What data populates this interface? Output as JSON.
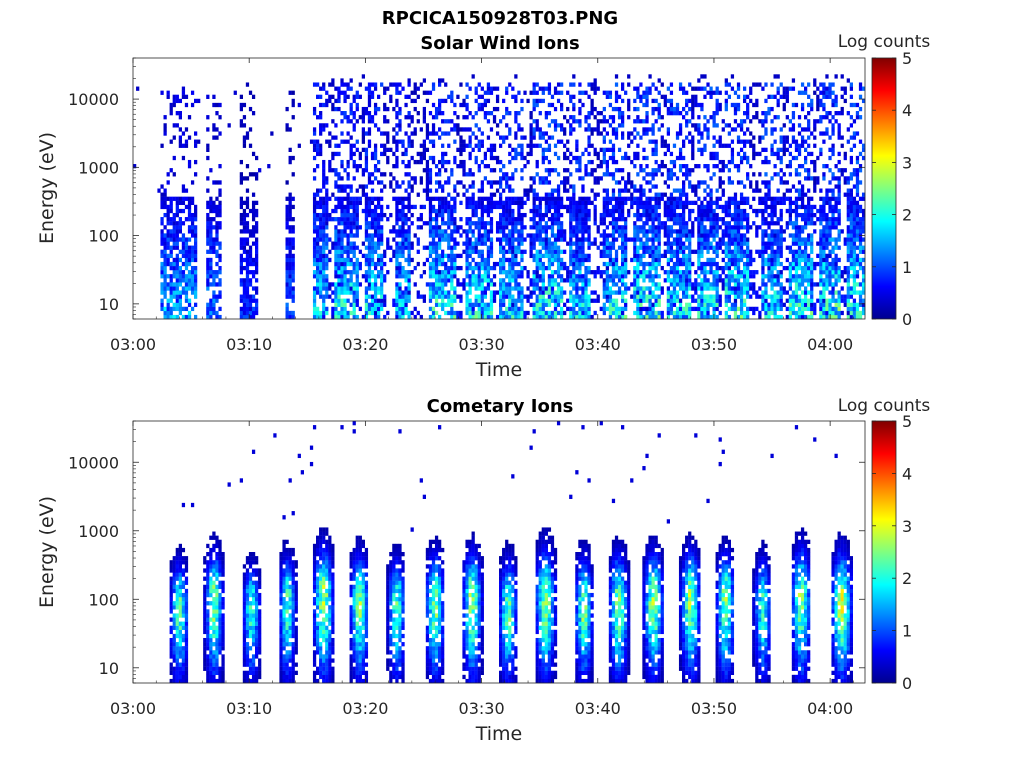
{
  "figure": {
    "filename": "RPCICA150928T03.PNG"
  },
  "colors": {
    "colormap": [
      "#00008f",
      "#0000ff",
      "#0080ff",
      "#00ffff",
      "#80ff80",
      "#ffff00",
      "#ff8000",
      "#ff0000",
      "#800000"
    ],
    "axis": "#262626",
    "background": "#ffffff"
  },
  "chart_data": [
    {
      "type": "heatmap",
      "title": "Solar Wind Ions",
      "xlabel": "Time",
      "ylabel": "Energy (eV)",
      "x_ticks": [
        "03:00",
        "03:10",
        "03:20",
        "03:30",
        "03:40",
        "03:50",
        "04:00"
      ],
      "xlim_minutes": [
        0,
        63
      ],
      "y_scale": "log",
      "y_ticks": [
        "10",
        "100",
        "1000",
        "10000"
      ],
      "ylim": [
        6,
        40000
      ],
      "colorbar": {
        "label": "Log counts",
        "range": [
          0,
          5
        ],
        "ticks": [
          "0",
          "1",
          "2",
          "3",
          "4",
          "5"
        ]
      },
      "grid": false,
      "activity": [
        {
          "start": 2.3,
          "end": 5.5,
          "low_peak": 1.4,
          "sparse_peak": 0.6
        },
        {
          "start": 6.4,
          "end": 7.6,
          "low_peak": 1.2,
          "sparse_peak": 0.5
        },
        {
          "start": 9.2,
          "end": 10.8,
          "low_peak": 0.8,
          "sparse_peak": 0.3
        },
        {
          "start": 13.2,
          "end": 14.0,
          "low_peak": 1.0,
          "sparse_peak": 0.3
        },
        {
          "start": 15.5,
          "end": 16.8,
          "low_peak": 1.6,
          "sparse_peak": 0.9
        },
        {
          "start": 17.2,
          "end": 19.5,
          "low_peak": 1.8,
          "sparse_peak": 1.0
        },
        {
          "start": 20.0,
          "end": 21.5,
          "low_peak": 1.7,
          "sparse_peak": 1.0
        },
        {
          "start": 22.5,
          "end": 24.0,
          "low_peak": 1.6,
          "sparse_peak": 1.0
        },
        {
          "start": 25.5,
          "end": 27.8,
          "low_peak": 1.9,
          "sparse_peak": 1.1
        },
        {
          "start": 28.5,
          "end": 31.0,
          "low_peak": 1.8,
          "sparse_peak": 1.1
        },
        {
          "start": 31.5,
          "end": 33.5,
          "low_peak": 1.7,
          "sparse_peak": 1.1
        },
        {
          "start": 34.5,
          "end": 37.0,
          "low_peak": 1.9,
          "sparse_peak": 1.2
        },
        {
          "start": 37.5,
          "end": 39.5,
          "low_peak": 1.7,
          "sparse_peak": 1.1
        },
        {
          "start": 40.5,
          "end": 42.5,
          "low_peak": 1.8,
          "sparse_peak": 1.2
        },
        {
          "start": 43.0,
          "end": 45.5,
          "low_peak": 1.9,
          "sparse_peak": 1.2
        },
        {
          "start": 46.0,
          "end": 48.0,
          "low_peak": 1.8,
          "sparse_peak": 1.2
        },
        {
          "start": 48.5,
          "end": 50.5,
          "low_peak": 1.8,
          "sparse_peak": 1.2
        },
        {
          "start": 51.0,
          "end": 53.0,
          "low_peak": 1.9,
          "sparse_peak": 1.2
        },
        {
          "start": 54.0,
          "end": 56.0,
          "low_peak": 1.7,
          "sparse_peak": 1.2
        },
        {
          "start": 56.5,
          "end": 58.5,
          "low_peak": 1.9,
          "sparse_peak": 1.2
        },
        {
          "start": 59.0,
          "end": 61.0,
          "low_peak": 2.0,
          "sparse_peak": 1.2
        },
        {
          "start": 61.3,
          "end": 63.0,
          "low_peak": 1.9,
          "sparse_peak": 1.2
        }
      ]
    },
    {
      "type": "heatmap",
      "title": "Cometary Ions",
      "xlabel": "Time",
      "ylabel": "Energy (eV)",
      "x_ticks": [
        "03:00",
        "03:10",
        "03:20",
        "03:30",
        "03:40",
        "03:50",
        "04:00"
      ],
      "xlim_minutes": [
        0,
        63
      ],
      "y_scale": "log",
      "y_ticks": [
        "10",
        "100",
        "1000",
        "10000"
      ],
      "ylim": [
        6,
        40000
      ],
      "colorbar": {
        "label": "Log counts",
        "range": [
          0,
          5
        ],
        "ticks": [
          "0",
          "1",
          "2",
          "3",
          "4",
          "5"
        ]
      },
      "grid": false,
      "bursts": [
        {
          "center": 4.0,
          "width": 1.6,
          "peak": 2.4,
          "energy_center": 70,
          "top_energy": 400
        },
        {
          "center": 7.0,
          "width": 1.6,
          "peak": 2.6,
          "energy_center": 100,
          "top_energy": 600
        },
        {
          "center": 10.2,
          "width": 1.5,
          "peak": 2.2,
          "energy_center": 80,
          "top_energy": 350
        },
        {
          "center": 13.3,
          "width": 1.5,
          "peak": 2.3,
          "energy_center": 90,
          "top_energy": 500
        },
        {
          "center": 16.4,
          "width": 1.8,
          "peak": 2.7,
          "energy_center": 110,
          "top_energy": 700
        },
        {
          "center": 19.5,
          "width": 1.6,
          "peak": 2.6,
          "energy_center": 90,
          "top_energy": 550
        },
        {
          "center": 22.7,
          "width": 1.5,
          "peak": 2.4,
          "energy_center": 80,
          "top_energy": 450
        },
        {
          "center": 26.0,
          "width": 1.7,
          "peak": 2.5,
          "energy_center": 90,
          "top_energy": 550
        },
        {
          "center": 29.2,
          "width": 1.7,
          "peak": 2.7,
          "energy_center": 100,
          "top_energy": 600
        },
        {
          "center": 32.3,
          "width": 1.6,
          "peak": 2.4,
          "energy_center": 70,
          "top_energy": 450
        },
        {
          "center": 35.5,
          "width": 1.8,
          "peak": 2.6,
          "energy_center": 90,
          "top_energy": 700
        },
        {
          "center": 38.8,
          "width": 1.6,
          "peak": 2.5,
          "energy_center": 80,
          "top_energy": 500
        },
        {
          "center": 41.8,
          "width": 1.7,
          "peak": 2.6,
          "energy_center": 90,
          "top_energy": 550
        },
        {
          "center": 44.8,
          "width": 1.7,
          "peak": 2.7,
          "energy_center": 100,
          "top_energy": 600
        },
        {
          "center": 48.0,
          "width": 1.7,
          "peak": 2.7,
          "energy_center": 110,
          "top_energy": 600
        },
        {
          "center": 51.0,
          "width": 1.6,
          "peak": 2.6,
          "energy_center": 100,
          "top_energy": 550
        },
        {
          "center": 54.2,
          "width": 1.5,
          "peak": 2.2,
          "energy_center": 80,
          "top_energy": 450
        },
        {
          "center": 57.5,
          "width": 1.7,
          "peak": 2.6,
          "energy_center": 100,
          "top_energy": 700
        },
        {
          "center": 61.0,
          "width": 1.8,
          "peak": 2.9,
          "energy_center": 90,
          "top_energy": 600
        }
      ]
    }
  ]
}
